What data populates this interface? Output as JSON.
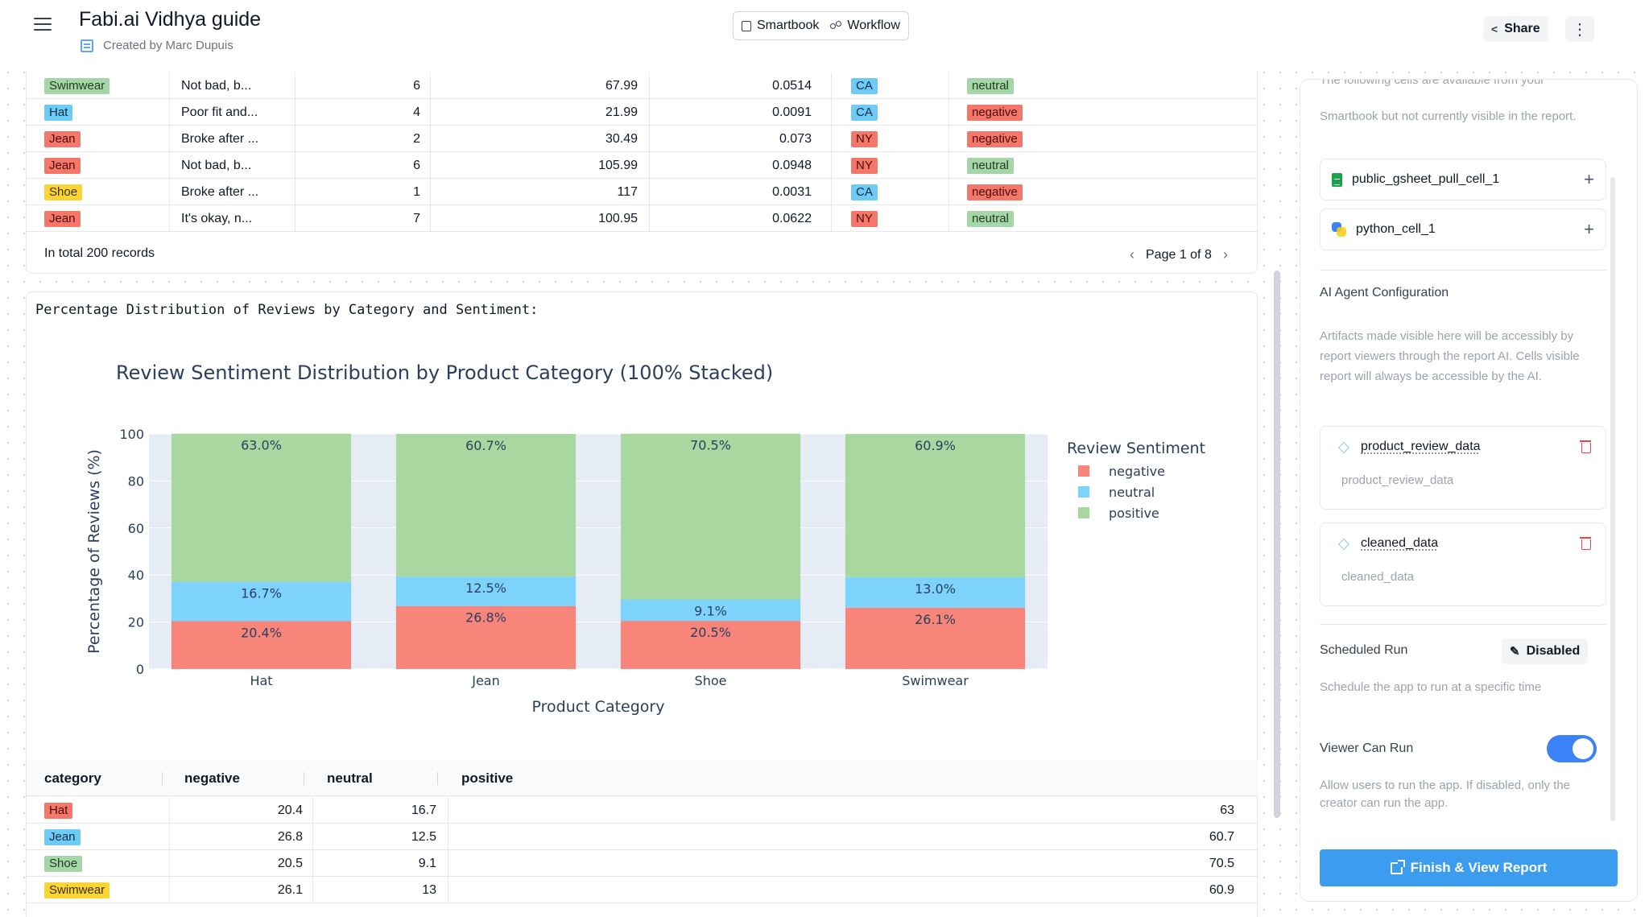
{
  "header": {
    "title": "Fabi.ai Vidhya guide",
    "created_by": "Created by Marc Dupuis",
    "smartbook_label": "Smartbook",
    "workflow_label": "Workflow",
    "share_label": "Share",
    "more_label": "⋮"
  },
  "top_table": {
    "rows": [
      {
        "category": "Swimwear",
        "cat_color": "yellow-green",
        "review": "Not bad, b...",
        "qty": "6",
        "price": "67.99",
        "score": "0.0514",
        "state": "CA",
        "sentiment": "neutral"
      },
      {
        "category": "Hat",
        "review": "Poor fit and...",
        "qty": "4",
        "price": "21.99",
        "score": "0.0091",
        "state": "CA",
        "sentiment": "negative"
      },
      {
        "category": "Jean",
        "review": "Broke after ...",
        "qty": "2",
        "price": "30.49",
        "score": "0.073",
        "state": "NY",
        "sentiment": "negative"
      },
      {
        "category": "Jean",
        "review": "Not bad, b...",
        "qty": "6",
        "price": "105.99",
        "score": "0.0948",
        "state": "NY",
        "sentiment": "neutral"
      },
      {
        "category": "Shoe",
        "review": "Broke after ...",
        "qty": "1",
        "price": "117",
        "score": "0.0031",
        "state": "CA",
        "sentiment": "negative"
      },
      {
        "category": "Jean",
        "review": "It's okay, n...",
        "qty": "7",
        "price": "100.95",
        "score": "0.0622",
        "state": "NY",
        "sentiment": "neutral"
      }
    ],
    "total": "In total 200 records",
    "page": "Page 1 of 8"
  },
  "console_line": "Percentage Distribution of Reviews by Category and Sentiment:",
  "chart_data": {
    "type": "bar",
    "stacked": true,
    "title": "Review Sentiment Distribution by Product Category (100% Stacked)",
    "xlabel": "Product Category",
    "ylabel": "Percentage of Reviews (%)",
    "ylim": [
      0,
      100
    ],
    "yticks": [
      0,
      20,
      40,
      60,
      80,
      100
    ],
    "categories": [
      "Hat",
      "Jean",
      "Shoe",
      "Swimwear"
    ],
    "legend_title": "Review Sentiment",
    "series": [
      {
        "name": "negative",
        "color": "#f7857a",
        "values": [
          20.4,
          26.8,
          20.5,
          26.1
        ],
        "labels": [
          "20.4%",
          "26.8%",
          "20.5%",
          "26.1%"
        ]
      },
      {
        "name": "neutral",
        "color": "#7dd3fc",
        "values": [
          16.7,
          12.5,
          9.1,
          13.0
        ],
        "labels": [
          "16.7%",
          "12.5%",
          "9.1%",
          "13.0%"
        ]
      },
      {
        "name": "positive",
        "color": "#a8d8a0",
        "values": [
          63.0,
          60.7,
          70.5,
          60.9
        ],
        "labels": [
          "63.0%",
          "60.7%",
          "70.5%",
          "60.9%"
        ]
      }
    ]
  },
  "bottom_table": {
    "headers": [
      "category",
      "negative",
      "neutral",
      "positive"
    ],
    "rows": [
      {
        "category": "Hat",
        "negative": "20.4",
        "neutral": "16.7",
        "positive": "63"
      },
      {
        "category": "Jean",
        "negative": "26.8",
        "neutral": "12.5",
        "positive": "60.7"
      },
      {
        "category": "Shoe",
        "negative": "20.5",
        "neutral": "9.1",
        "positive": "70.5"
      },
      {
        "category": "Swimwear",
        "negative": "26.1",
        "neutral": "13",
        "positive": "60.9"
      }
    ]
  },
  "panel": {
    "cut_text": "The following cells are available from your",
    "intro": "Smartbook but not currently visible in the report.",
    "cells": [
      "public_gsheet_pull_cell_1",
      "python_cell_1"
    ],
    "ai_heading": "AI Agent Configuration",
    "ai_desc": "Artifacts made visible here will be accessibly by report viewers through the report AI. Cells visible report will always be accessible by the AI.",
    "artifacts": [
      {
        "name": "product_review_data",
        "sub": "product_review_data"
      },
      {
        "name": "cleaned_data",
        "sub": "cleaned_data"
      }
    ],
    "scheduled_heading": "Scheduled Run",
    "scheduled_status": "Disabled",
    "scheduled_desc": "Schedule the app to run at a specific time",
    "viewer_heading": "Viewer Can Run",
    "viewer_desc": "Allow users to run the app. If disabled, only the creator can run the app.",
    "finish_label": "Finish & View Report"
  }
}
